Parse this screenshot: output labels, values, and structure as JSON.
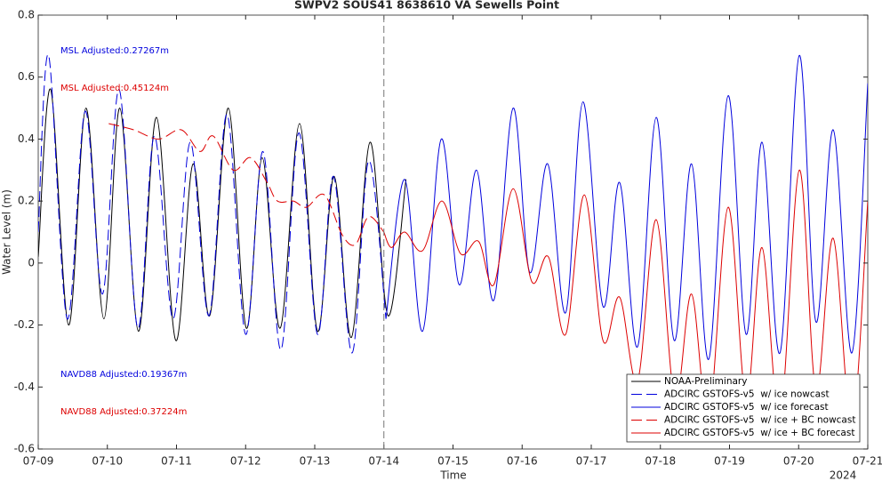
{
  "chart_data": {
    "type": "line",
    "title": "SWPV2 SOUS41 8638610 VA Sewells Point",
    "xlabel": "Time",
    "ylabel": "Water Level (m)",
    "x_year_label": "2024",
    "xlim": [
      0,
      12
    ],
    "ylim": [
      -0.6,
      0.8
    ],
    "xticks": [
      {
        "value": 0,
        "label": "07-09"
      },
      {
        "value": 1,
        "label": "07-10"
      },
      {
        "value": 2,
        "label": "07-11"
      },
      {
        "value": 3,
        "label": "07-12"
      },
      {
        "value": 4,
        "label": "07-13"
      },
      {
        "value": 5,
        "label": "07-14"
      },
      {
        "value": 6,
        "label": "07-15"
      },
      {
        "value": 7,
        "label": "07-16"
      },
      {
        "value": 8,
        "label": "07-17"
      },
      {
        "value": 9,
        "label": "07-18"
      },
      {
        "value": 10,
        "label": "07-19"
      },
      {
        "value": 11,
        "label": "07-20"
      },
      {
        "value": 12,
        "label": "07-21"
      }
    ],
    "yticks": [
      -0.6,
      -0.4,
      -0.2,
      0,
      0.2,
      0.4,
      0.6,
      0.8
    ],
    "now_line_x": 5,
    "legend": "lower right",
    "annotations": [
      {
        "text": "MSL Adjusted:0.27267m",
        "color": "#0000dd"
      },
      {
        "text": "MSL Adjusted:0.45124m",
        "color": "#dd0000"
      },
      {
        "text": "NAVD88 Adjusted:0.19367m",
        "color": "#0000dd"
      },
      {
        "text": "NAVD88 Adjusted:0.37224m",
        "color": "#dd0000"
      }
    ],
    "series": [
      {
        "name": "NOAA-Preliminary",
        "color": "#000000",
        "dashed": false,
        "x": [
          0,
          0.18,
          0.44,
          0.69,
          0.95,
          1.18,
          1.45,
          1.71,
          1.99,
          2.24,
          2.48,
          2.75,
          3.01,
          3.24,
          3.5,
          3.78,
          4.04,
          4.28,
          4.53,
          4.8,
          5.06,
          5.32
        ],
        "values": [
          0.02,
          0.56,
          -0.2,
          0.5,
          -0.18,
          0.5,
          -0.22,
          0.47,
          -0.25,
          0.32,
          -0.17,
          0.5,
          -0.21,
          0.34,
          -0.21,
          0.45,
          -0.22,
          0.28,
          -0.24,
          0.39,
          -0.17,
          0.27
        ]
      },
      {
        "name": "ADCIRC GSTOFS-v5  w/ ice nowcast",
        "color": "#0000dd",
        "dashed": true,
        "x": [
          0,
          0.15,
          0.42,
          0.68,
          0.93,
          1.17,
          1.44,
          1.68,
          1.95,
          2.2,
          2.47,
          2.73,
          3.0,
          3.25,
          3.51,
          3.77,
          4.04,
          4.27,
          4.54,
          4.78,
          5.03
        ],
        "values": [
          0.1,
          0.67,
          -0.18,
          0.49,
          -0.1,
          0.56,
          -0.21,
          0.41,
          -0.18,
          0.39,
          -0.17,
          0.48,
          -0.23,
          0.36,
          -0.28,
          0.42,
          -0.23,
          0.28,
          -0.29,
          0.33,
          -0.18
        ]
      },
      {
        "name": "ADCIRC GSTOFS-v5  w/ ice forecast",
        "color": "#0000dd",
        "dashed": false,
        "x": [
          5.03,
          5.3,
          5.56,
          5.83,
          6.09,
          6.34,
          6.59,
          6.87,
          7.11,
          7.37,
          7.63,
          7.88,
          8.17,
          8.41,
          8.67,
          8.94,
          9.2,
          9.45,
          9.7,
          9.98,
          10.24,
          10.47,
          10.73,
          11.01,
          11.25,
          11.5,
          11.77,
          12.0
        ],
        "values": [
          -0.18,
          0.27,
          -0.22,
          0.4,
          -0.07,
          0.3,
          -0.12,
          0.5,
          -0.03,
          0.32,
          -0.16,
          0.52,
          -0.14,
          0.26,
          -0.27,
          0.47,
          -0.25,
          0.32,
          -0.31,
          0.54,
          -0.23,
          0.39,
          -0.29,
          0.67,
          -0.19,
          0.43,
          -0.29,
          0.58
        ]
      },
      {
        "name": "ADCIRC GSTOFS-v5  w/ ice + BC nowcast",
        "color": "#dd0000",
        "dashed": true,
        "x": [
          1.02,
          1.38,
          1.74,
          2.07,
          2.34,
          2.53,
          2.82,
          3.07,
          3.31,
          3.46,
          3.69,
          3.88,
          4.14,
          4.4,
          4.59,
          4.78,
          5.0
        ],
        "values": [
          0.45,
          0.43,
          0.4,
          0.43,
          0.36,
          0.41,
          0.3,
          0.34,
          0.26,
          0.2,
          0.2,
          0.18,
          0.22,
          0.09,
          0.06,
          0.15,
          0.1
        ]
      },
      {
        "name": "ADCIRC GSTOFS-v5  w/ ice + BC forecast",
        "color": "#dd0000",
        "dashed": false,
        "x": [
          5.0,
          5.11,
          5.3,
          5.56,
          5.84,
          6.11,
          6.37,
          6.59,
          6.87,
          7.14,
          7.38,
          7.63,
          7.9,
          8.17,
          8.41,
          8.67,
          8.94,
          9.21,
          9.45,
          9.7,
          9.98,
          10.24,
          10.47,
          10.73,
          11.01,
          11.25,
          11.5,
          11.77,
          12.0
        ],
        "values": [
          0.1,
          0.05,
          0.1,
          0.04,
          0.2,
          0.03,
          0.07,
          -0.07,
          0.24,
          -0.06,
          0.02,
          -0.23,
          0.22,
          -0.25,
          -0.11,
          -0.38,
          0.14,
          -0.44,
          -0.1,
          -0.5,
          0.18,
          -0.44,
          0.05,
          -0.5,
          0.3,
          -0.41,
          0.08,
          -0.53,
          0.2
        ]
      }
    ]
  }
}
